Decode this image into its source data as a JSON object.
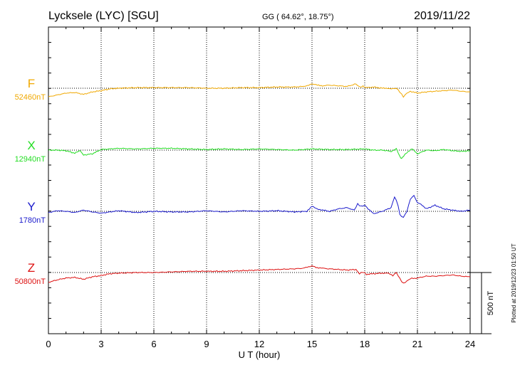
{
  "header": {
    "station": "Lycksele (LYC)  [SGU]",
    "coords": "GG ( 64.62°,  18.75°)",
    "date": "2019/11/22"
  },
  "footer": {
    "plotted": "Plotted at 2019/12/23 01:50 UT"
  },
  "colors": {
    "F": "#f0a800",
    "X": "#22dd22",
    "Y": "#1a1acc",
    "Z": "#dd1111"
  },
  "chart_data": {
    "type": "line",
    "xlabel": "U T (hour)",
    "xlim": [
      0,
      24
    ],
    "xticks": [
      0,
      3,
      6,
      9,
      12,
      15,
      18,
      21,
      24
    ],
    "scale_bar": {
      "label": "500 nT",
      "value": 500
    },
    "series": [
      {
        "name": "F",
        "baseline_label": "52460nT",
        "baseline": 52460,
        "x": [
          0,
          0.5,
          1,
          1.5,
          2,
          2.5,
          3,
          3.5,
          4,
          5,
          6,
          7,
          8,
          9,
          10,
          11,
          12,
          13,
          14,
          14.5,
          14.8,
          15,
          15.3,
          15.6,
          16,
          16.5,
          17,
          17.5,
          17.7,
          17.9,
          18.1,
          18.5,
          19,
          19.3,
          19.6,
          19.8,
          20,
          20.2,
          20.4,
          20.6,
          21,
          21.5,
          22,
          22.5,
          23,
          23.5,
          24
        ],
        "y": [
          -70,
          -55,
          -40,
          -35,
          -50,
          -30,
          -20,
          -5,
          0,
          5,
          5,
          5,
          5,
          0,
          0,
          5,
          5,
          10,
          10,
          15,
          25,
          35,
          25,
          20,
          25,
          20,
          15,
          35,
          10,
          15,
          5,
          10,
          0,
          0,
          -5,
          0,
          -30,
          -70,
          -40,
          -25,
          -40,
          -30,
          -25,
          -20,
          -15,
          -25,
          -30
        ]
      },
      {
        "name": "X",
        "baseline_label": "12940nT",
        "baseline": 12940,
        "x": [
          0,
          0.5,
          1,
          1.5,
          1.8,
          2,
          2.5,
          3,
          3.5,
          4,
          5,
          6,
          7,
          8,
          9,
          10,
          11,
          12,
          13,
          14,
          15,
          16,
          17,
          18,
          18.5,
          19,
          19.5,
          19.8,
          20,
          20.1,
          20.2,
          20.4,
          20.7,
          21,
          21.5,
          22,
          22.5,
          23,
          23.5,
          24
        ],
        "y": [
          0,
          0,
          -5,
          -25,
          -5,
          -40,
          -30,
          5,
          10,
          15,
          10,
          15,
          15,
          10,
          5,
          10,
          5,
          10,
          5,
          0,
          10,
          5,
          5,
          10,
          0,
          0,
          -10,
          10,
          -50,
          -70,
          -50,
          -20,
          10,
          -30,
          0,
          -5,
          5,
          -5,
          -10,
          -5
        ]
      },
      {
        "name": "Y",
        "baseline_label": "1780nT",
        "baseline": 1780,
        "x": [
          0,
          0.5,
          1,
          1.5,
          2,
          2.5,
          3,
          4,
          5,
          6,
          7,
          8,
          9,
          10,
          11,
          12,
          13,
          14,
          14.7,
          15,
          15.3,
          15.6,
          16,
          16.5,
          17,
          17.4,
          17.6,
          17.8,
          18,
          18.2,
          18.5,
          19,
          19.5,
          19.7,
          19.9,
          20,
          20.2,
          20.4,
          20.6,
          20.8,
          21,
          21.2,
          21.5,
          22,
          22.5,
          23,
          23.5,
          24
        ],
        "y": [
          -10,
          5,
          0,
          -10,
          10,
          -5,
          -15,
          5,
          -10,
          0,
          -5,
          -5,
          5,
          -5,
          5,
          0,
          5,
          -5,
          0,
          40,
          20,
          10,
          0,
          20,
          30,
          10,
          60,
          40,
          50,
          20,
          -20,
          0,
          30,
          120,
          50,
          -30,
          -50,
          0,
          100,
          130,
          70,
          60,
          20,
          50,
          20,
          10,
          0,
          10
        ]
      },
      {
        "name": "Z",
        "baseline_label": "50800nT",
        "baseline": 50800,
        "x": [
          0,
          0.5,
          1,
          1.5,
          2,
          2.5,
          3,
          3.5,
          4,
          5,
          6,
          7,
          8,
          9,
          10,
          11,
          12,
          13,
          14,
          14.5,
          14.8,
          15,
          15.3,
          15.6,
          16,
          16.5,
          17,
          17.5,
          17.7,
          17.9,
          18.1,
          18.5,
          19,
          19.3,
          19.6,
          19.8,
          20,
          20.2,
          20.4,
          20.6,
          21,
          21.5,
          22,
          22.5,
          23,
          23.5,
          24
        ],
        "y": [
          -80,
          -60,
          -45,
          -40,
          -55,
          -35,
          -25,
          -10,
          -5,
          0,
          0,
          5,
          10,
          10,
          10,
          15,
          20,
          25,
          30,
          35,
          45,
          55,
          40,
          35,
          30,
          25,
          20,
          25,
          -10,
          5,
          -15,
          -10,
          -5,
          -5,
          -25,
          0,
          -50,
          -90,
          -70,
          -50,
          -45,
          -30,
          -30,
          -25,
          -20,
          -30,
          -35
        ]
      }
    ]
  }
}
